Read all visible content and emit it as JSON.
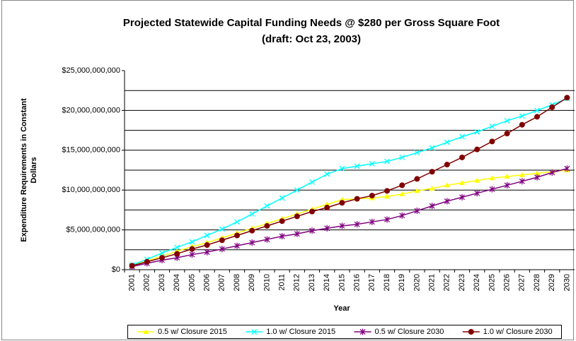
{
  "chart_data": {
    "type": "line",
    "title": "Projected Statewide Capital Funding Needs @ $280 per Gross Square Foot",
    "subtitle": "(draft: Oct 23, 2003)",
    "xlabel": "Year",
    "ylabel": [
      "Expenditure Requirements in Constant",
      "Dollars"
    ],
    "categories": [
      "2001",
      "2002",
      "2003",
      "2004",
      "2005",
      "2006",
      "2007",
      "2008",
      "2009",
      "2010",
      "2011",
      "2012",
      "2013",
      "2014",
      "2015",
      "2016",
      "2017",
      "2018",
      "2019",
      "2020",
      "2021",
      "2022",
      "2023",
      "2024",
      "2025",
      "2026",
      "2027",
      "2028",
      "2029",
      "2030"
    ],
    "ylim": [
      0,
      25000000000
    ],
    "yticks": [
      {
        "value": 0,
        "label": "$0"
      },
      {
        "value": 5000000000,
        "label": "$5,000,000,000"
      },
      {
        "value": 10000000000,
        "label": "$10,000,000,000"
      },
      {
        "value": 15000000000,
        "label": "$15,000,000,000"
      },
      {
        "value": 20000000000,
        "label": "$20,000,000,000"
      },
      {
        "value": 25000000000,
        "label": "$25,000,000,000"
      }
    ],
    "grid_lines": [
      2500000000,
      5000000000,
      7500000000,
      10000000000,
      12500000000,
      15000000000,
      17500000000,
      20000000000,
      22500000000
    ],
    "legend": "bottom",
    "series": [
      {
        "name": "0.5 w/ Closure 2015",
        "color": "#ffff00",
        "marker": "triangle",
        "values": [
          550000000,
          1100000000,
          1700000000,
          2300000000,
          2900000000,
          3400000000,
          4000000000,
          4600000000,
          5200000000,
          5800000000,
          6400000000,
          7000000000,
          7600000000,
          8200000000,
          8800000000,
          8900000000,
          9000000000,
          9200000000,
          9500000000,
          9900000000,
          10200000000,
          10600000000,
          10900000000,
          11200000000,
          11500000000,
          11700000000,
          11900000000,
          12100000000,
          12300000000,
          12500000000
        ]
      },
      {
        "name": "1.0 w/ Closure 2015",
        "color": "#00ffff",
        "marker": "x",
        "values": [
          600000000,
          1300000000,
          2100000000,
          2800000000,
          3500000000,
          4300000000,
          5100000000,
          6000000000,
          7000000000,
          8000000000,
          9000000000,
          10000000000,
          11000000000,
          12000000000,
          12700000000,
          13000000000,
          13300000000,
          13600000000,
          14100000000,
          14700000000,
          15300000000,
          16000000000,
          16700000000,
          17300000000,
          18000000000,
          18700000000,
          19300000000,
          20000000000,
          20700000000,
          21500000000
        ]
      },
      {
        "name": "0.5 w/ Closure 2030",
        "color": "#800080",
        "marker": "star",
        "values": [
          400000000,
          800000000,
          1200000000,
          1500000000,
          1900000000,
          2200000000,
          2600000000,
          3000000000,
          3400000000,
          3800000000,
          4200000000,
          4500000000,
          4900000000,
          5200000000,
          5500000000,
          5700000000,
          6000000000,
          6300000000,
          6800000000,
          7400000000,
          8000000000,
          8600000000,
          9100000000,
          9600000000,
          10100000000,
          10600000000,
          11100000000,
          11600000000,
          12200000000,
          12700000000
        ]
      },
      {
        "name": "1.0 w/ Closure 2030",
        "color": "#800000",
        "marker": "circle",
        "values": [
          500000000,
          1000000000,
          1500000000,
          2000000000,
          2600000000,
          3100000000,
          3700000000,
          4300000000,
          4900000000,
          5500000000,
          6100000000,
          6700000000,
          7300000000,
          7800000000,
          8400000000,
          8900000000,
          9300000000,
          9900000000,
          10600000000,
          11400000000,
          12300000000,
          13200000000,
          14100000000,
          15100000000,
          16100000000,
          17100000000,
          18200000000,
          19200000000,
          20400000000,
          21600000000
        ]
      }
    ]
  }
}
